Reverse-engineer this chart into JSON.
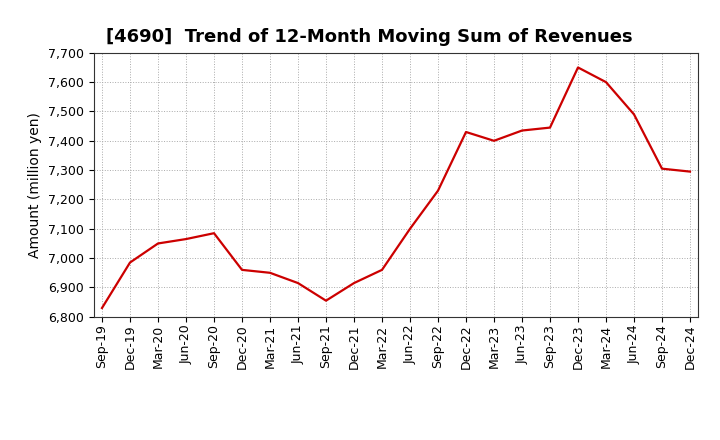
{
  "title": "[4690]  Trend of 12-Month Moving Sum of Revenues",
  "ylabel": "Amount (million yen)",
  "line_color": "#CC0000",
  "background_color": "#ffffff",
  "plot_bg_color": "#ffffff",
  "grid_color": "#aaaaaa",
  "ylim": [
    6800,
    7700
  ],
  "yticks": [
    6800,
    6900,
    7000,
    7100,
    7200,
    7300,
    7400,
    7500,
    7600,
    7700
  ],
  "x_labels": [
    "Sep-19",
    "Dec-19",
    "Mar-20",
    "Jun-20",
    "Sep-20",
    "Dec-20",
    "Mar-21",
    "Jun-21",
    "Sep-21",
    "Dec-21",
    "Mar-22",
    "Jun-22",
    "Sep-22",
    "Dec-22",
    "Mar-23",
    "Jun-23",
    "Sep-23",
    "Dec-23",
    "Mar-24",
    "Jun-24",
    "Sep-24",
    "Dec-24"
  ],
  "values": [
    6830,
    6985,
    7050,
    7065,
    7085,
    6960,
    6950,
    6915,
    6855,
    6915,
    6960,
    7100,
    7230,
    7430,
    7400,
    7435,
    7445,
    7650,
    7600,
    7490,
    7305,
    7295
  ],
  "title_fontsize": 13,
  "axis_label_fontsize": 10,
  "tick_fontsize": 9
}
